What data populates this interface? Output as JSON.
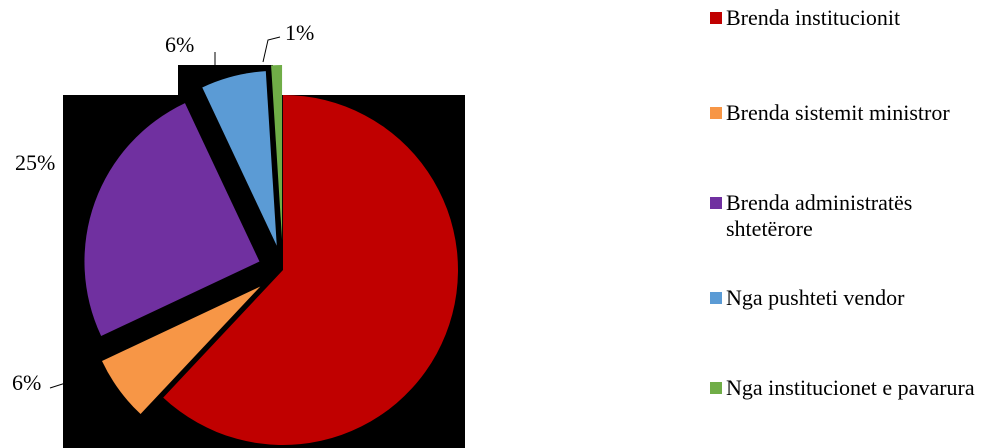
{
  "chart_data": {
    "type": "pie",
    "categories": [
      "Brenda institucionit",
      "Brenda sistemit ministror",
      "Brenda administratës shtetërore",
      "Nga pushteti vendor",
      "Nga institucionet e pavarura"
    ],
    "values": [
      62,
      6,
      25,
      6,
      1
    ],
    "value_labels": [
      null,
      "6%",
      "25%",
      "6%",
      "1%"
    ],
    "colors": [
      "#c00000",
      "#f79646",
      "#7030a0",
      "#5b9bd5",
      "#70ad47"
    ],
    "legend": "right"
  }
}
